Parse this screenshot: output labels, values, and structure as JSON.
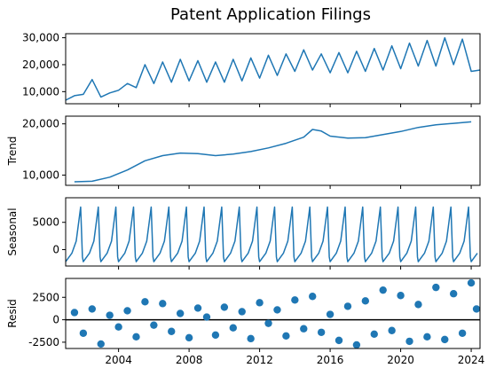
{
  "chart_data": {
    "type": "line",
    "title": "Patent Application Filings",
    "x_ticks": [
      "2004",
      "2008",
      "2012",
      "2016",
      "2020",
      "2024"
    ],
    "x_range": [
      2001.0,
      2024.5
    ],
    "panels": [
      {
        "name": "observed",
        "ylabel": "",
        "kind": "line",
        "ylim": [
          5500,
          31500
        ],
        "yticks": [
          10000,
          20000,
          30000
        ],
        "ytick_labels": [
          "10,000",
          "20,000",
          "30,000"
        ],
        "series": [
          {
            "x": 2001.0,
            "y": 6800
          },
          {
            "x": 2001.5,
            "y": 8500
          },
          {
            "x": 2002.0,
            "y": 9000
          },
          {
            "x": 2002.5,
            "y": 14500
          },
          {
            "x": 2003.0,
            "y": 8000
          },
          {
            "x": 2003.5,
            "y": 9500
          },
          {
            "x": 2004.0,
            "y": 10500
          },
          {
            "x": 2004.5,
            "y": 13000
          },
          {
            "x": 2005.0,
            "y": 11500
          },
          {
            "x": 2005.5,
            "y": 20000
          },
          {
            "x": 2006.0,
            "y": 13000
          },
          {
            "x": 2006.5,
            "y": 21000
          },
          {
            "x": 2007.0,
            "y": 13500
          },
          {
            "x": 2007.5,
            "y": 22000
          },
          {
            "x": 2008.0,
            "y": 14000
          },
          {
            "x": 2008.5,
            "y": 21500
          },
          {
            "x": 2009.0,
            "y": 13500
          },
          {
            "x": 2009.5,
            "y": 21000
          },
          {
            "x": 2010.0,
            "y": 13500
          },
          {
            "x": 2010.5,
            "y": 22000
          },
          {
            "x": 2011.0,
            "y": 14000
          },
          {
            "x": 2011.5,
            "y": 22500
          },
          {
            "x": 2012.0,
            "y": 15000
          },
          {
            "x": 2012.5,
            "y": 23500
          },
          {
            "x": 2013.0,
            "y": 16000
          },
          {
            "x": 2013.5,
            "y": 24000
          },
          {
            "x": 2014.0,
            "y": 17500
          },
          {
            "x": 2014.5,
            "y": 25500
          },
          {
            "x": 2015.0,
            "y": 18000
          },
          {
            "x": 2015.5,
            "y": 24000
          },
          {
            "x": 2016.0,
            "y": 17000
          },
          {
            "x": 2016.5,
            "y": 24500
          },
          {
            "x": 2017.0,
            "y": 17000
          },
          {
            "x": 2017.5,
            "y": 25000
          },
          {
            "x": 2018.0,
            "y": 17500
          },
          {
            "x": 2018.5,
            "y": 26000
          },
          {
            "x": 2019.0,
            "y": 18000
          },
          {
            "x": 2019.5,
            "y": 27000
          },
          {
            "x": 2020.0,
            "y": 18500
          },
          {
            "x": 2020.5,
            "y": 28000
          },
          {
            "x": 2021.0,
            "y": 19500
          },
          {
            "x": 2021.5,
            "y": 29000
          },
          {
            "x": 2022.0,
            "y": 19500
          },
          {
            "x": 2022.5,
            "y": 30000
          },
          {
            "x": 2023.0,
            "y": 20000
          },
          {
            "x": 2023.5,
            "y": 29500
          },
          {
            "x": 2024.0,
            "y": 17500
          },
          {
            "x": 2024.5,
            "y": 18000
          }
        ]
      },
      {
        "name": "trend",
        "ylabel": "Trend",
        "kind": "line",
        "ylim": [
          8000,
          21500
        ],
        "yticks": [
          10000,
          20000
        ],
        "ytick_labels": [
          "10,000",
          "20,000"
        ],
        "series": [
          {
            "x": 2001.5,
            "y": 8700
          },
          {
            "x": 2002.5,
            "y": 8800
          },
          {
            "x": 2003.5,
            "y": 9600
          },
          {
            "x": 2004.5,
            "y": 11000
          },
          {
            "x": 2005.5,
            "y": 12800
          },
          {
            "x": 2006.5,
            "y": 13800
          },
          {
            "x": 2007.5,
            "y": 14300
          },
          {
            "x": 2008.5,
            "y": 14200
          },
          {
            "x": 2009.5,
            "y": 13800
          },
          {
            "x": 2010.5,
            "y": 14100
          },
          {
            "x": 2011.5,
            "y": 14600
          },
          {
            "x": 2012.5,
            "y": 15300
          },
          {
            "x": 2013.5,
            "y": 16200
          },
          {
            "x": 2014.5,
            "y": 17400
          },
          {
            "x": 2015.0,
            "y": 18900
          },
          {
            "x": 2015.5,
            "y": 18600
          },
          {
            "x": 2016.0,
            "y": 17600
          },
          {
            "x": 2017.0,
            "y": 17200
          },
          {
            "x": 2018.0,
            "y": 17300
          },
          {
            "x": 2019.0,
            "y": 17900
          },
          {
            "x": 2020.0,
            "y": 18500
          },
          {
            "x": 2021.0,
            "y": 19300
          },
          {
            "x": 2022.0,
            "y": 19800
          },
          {
            "x": 2023.0,
            "y": 20100
          },
          {
            "x": 2024.0,
            "y": 20400
          }
        ]
      },
      {
        "name": "seasonal",
        "ylabel": "Seasonal",
        "kind": "seasonal",
        "ylim": [
          -3000,
          9500
        ],
        "yticks": [
          0,
          5000
        ],
        "ytick_labels": [
          "0",
          "5000"
        ],
        "peak": 7800,
        "trough": -2200
      },
      {
        "name": "resid",
        "ylabel": "Resid",
        "kind": "scatter",
        "ylim": [
          -3200,
          4600
        ],
        "yticks": [
          -2500,
          0,
          2500
        ],
        "ytick_labels": [
          "-2500",
          "0",
          "2500"
        ],
        "points": [
          {
            "x": 2001.5,
            "y": 800
          },
          {
            "x": 2002.0,
            "y": -1500
          },
          {
            "x": 2002.5,
            "y": 1200
          },
          {
            "x": 2003.0,
            "y": -2700
          },
          {
            "x": 2003.5,
            "y": 500
          },
          {
            "x": 2004.0,
            "y": -800
          },
          {
            "x": 2004.5,
            "y": 1000
          },
          {
            "x": 2005.0,
            "y": -1900
          },
          {
            "x": 2005.5,
            "y": 2000
          },
          {
            "x": 2006.0,
            "y": -600
          },
          {
            "x": 2006.5,
            "y": 1800
          },
          {
            "x": 2007.0,
            "y": -1300
          },
          {
            "x": 2007.5,
            "y": 700
          },
          {
            "x": 2008.0,
            "y": -2000
          },
          {
            "x": 2008.5,
            "y": 1300
          },
          {
            "x": 2009.0,
            "y": 300
          },
          {
            "x": 2009.5,
            "y": -1700
          },
          {
            "x": 2010.0,
            "y": 1400
          },
          {
            "x": 2010.5,
            "y": -900
          },
          {
            "x": 2011.0,
            "y": 900
          },
          {
            "x": 2011.5,
            "y": -2100
          },
          {
            "x": 2012.0,
            "y": 1900
          },
          {
            "x": 2012.5,
            "y": -400
          },
          {
            "x": 2013.0,
            "y": 1100
          },
          {
            "x": 2013.5,
            "y": -1800
          },
          {
            "x": 2014.0,
            "y": 2200
          },
          {
            "x": 2014.5,
            "y": -1000
          },
          {
            "x": 2015.0,
            "y": 2600
          },
          {
            "x": 2015.5,
            "y": -1400
          },
          {
            "x": 2016.0,
            "y": 600
          },
          {
            "x": 2016.5,
            "y": -2300
          },
          {
            "x": 2017.0,
            "y": 1500
          },
          {
            "x": 2017.5,
            "y": -2800
          },
          {
            "x": 2018.0,
            "y": 2100
          },
          {
            "x": 2018.5,
            "y": -1600
          },
          {
            "x": 2019.0,
            "y": 3300
          },
          {
            "x": 2019.5,
            "y": -1200
          },
          {
            "x": 2020.0,
            "y": 2700
          },
          {
            "x": 2020.5,
            "y": -2400
          },
          {
            "x": 2021.0,
            "y": 1700
          },
          {
            "x": 2021.5,
            "y": -1900
          },
          {
            "x": 2022.0,
            "y": 3600
          },
          {
            "x": 2022.5,
            "y": -2200
          },
          {
            "x": 2023.0,
            "y": 2900
          },
          {
            "x": 2023.5,
            "y": -1500
          },
          {
            "x": 2024.0,
            "y": 4100
          },
          {
            "x": 2024.3,
            "y": 1200
          }
        ]
      }
    ],
    "grid": false,
    "line_color": "#1f77b4"
  }
}
